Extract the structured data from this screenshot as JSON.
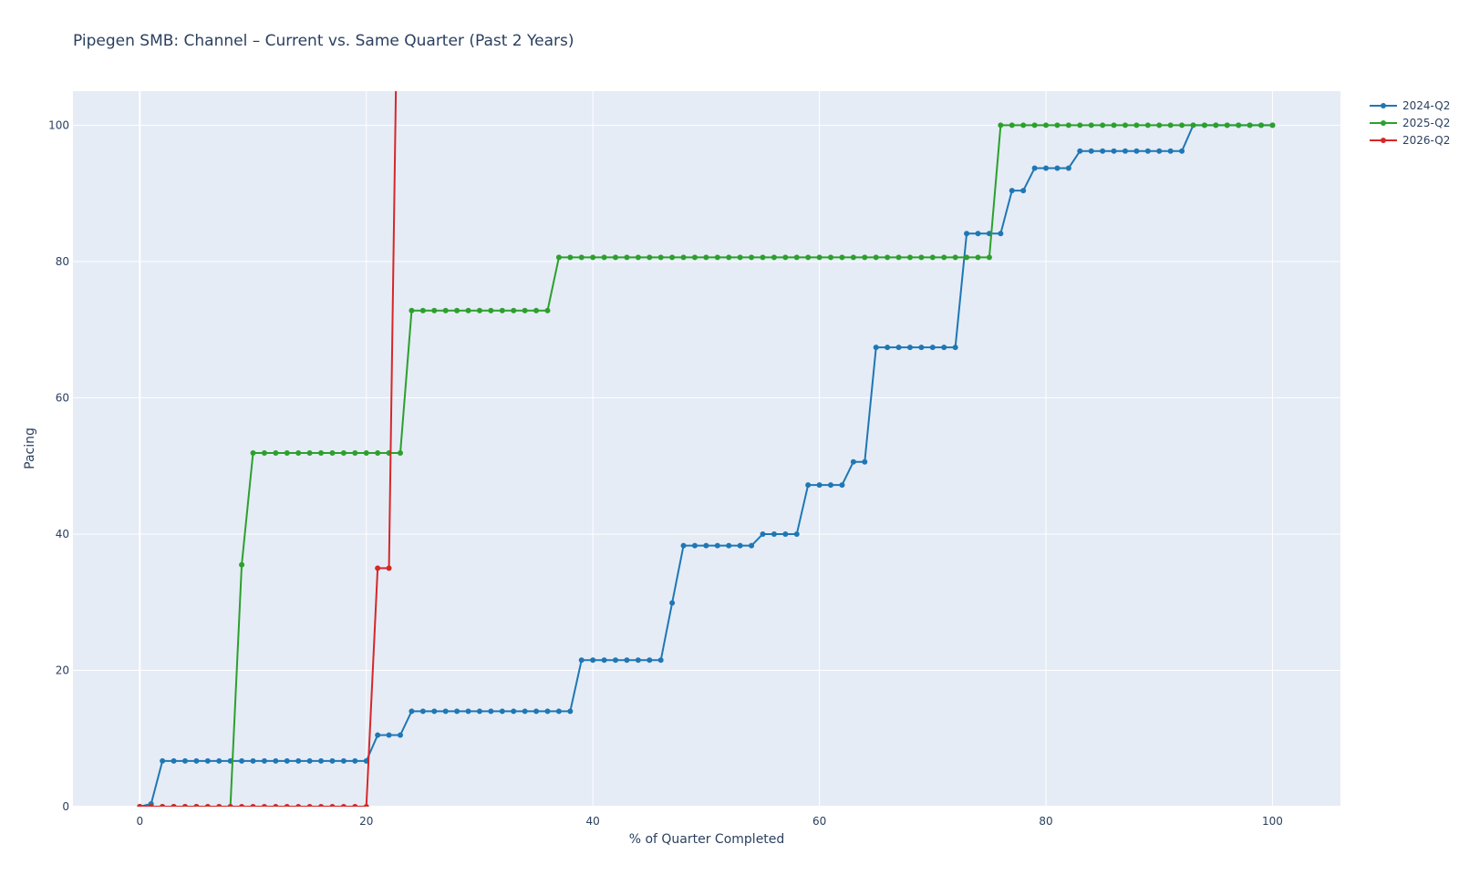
{
  "chart_data": {
    "type": "line",
    "title": "Pipegen SMB: Channel – Current vs. Same Quarter (Past 2 Years)",
    "xlabel": "% of Quarter Completed",
    "ylabel": "Pacing",
    "xlim": [
      -5.9,
      106
    ],
    "ylim": [
      0,
      105
    ],
    "x_ticks": [
      0,
      20,
      40,
      60,
      80,
      100
    ],
    "y_ticks": [
      0,
      20,
      40,
      60,
      80,
      100
    ],
    "grid": true,
    "legend_position": "top-right",
    "plot_background": "#e5ecf6",
    "series": [
      {
        "name": "2024-Q2",
        "color": "#1f77b4",
        "x": [
          0,
          1,
          2,
          3,
          4,
          5,
          6,
          7,
          8,
          9,
          10,
          11,
          12,
          13,
          14,
          15,
          16,
          17,
          18,
          19,
          20,
          21,
          22,
          23,
          24,
          25,
          26,
          27,
          28,
          29,
          30,
          31,
          32,
          33,
          34,
          35,
          36,
          37,
          38,
          39,
          40,
          41,
          42,
          43,
          44,
          45,
          46,
          47,
          48,
          49,
          50,
          51,
          52,
          53,
          54,
          55,
          56,
          57,
          58,
          59,
          60,
          61,
          62,
          63,
          64,
          65,
          66,
          67,
          68,
          69,
          70,
          71,
          72,
          73,
          74,
          75,
          76,
          77,
          78,
          79,
          80,
          81,
          82,
          83,
          84,
          85,
          86,
          87,
          88,
          89,
          90,
          91,
          92,
          93,
          94,
          95,
          96,
          97,
          98,
          99,
          100
        ],
        "y": [
          0,
          0.4,
          6.7,
          6.7,
          6.7,
          6.7,
          6.7,
          6.7,
          6.7,
          6.7,
          6.7,
          6.7,
          6.7,
          6.7,
          6.7,
          6.7,
          6.7,
          6.7,
          6.7,
          6.7,
          6.7,
          10.5,
          10.5,
          10.5,
          14.0,
          14.0,
          14.0,
          14.0,
          14.0,
          14.0,
          14.0,
          14.0,
          14.0,
          14.0,
          14.0,
          14.0,
          14.0,
          14.0,
          14.0,
          21.5,
          21.5,
          21.5,
          21.5,
          21.5,
          21.5,
          21.5,
          21.5,
          29.9,
          38.3,
          38.3,
          38.3,
          38.3,
          38.3,
          38.3,
          38.3,
          40.0,
          40.0,
          40.0,
          40.0,
          47.2,
          47.2,
          47.2,
          47.2,
          50.6,
          50.6,
          67.4,
          67.4,
          67.4,
          67.4,
          67.4,
          67.4,
          67.4,
          67.4,
          84.1,
          84.1,
          84.1,
          84.1,
          90.4,
          90.4,
          93.7,
          93.7,
          93.7,
          93.7,
          96.2,
          96.2,
          96.2,
          96.2,
          96.2,
          96.2,
          96.2,
          96.2,
          96.2,
          96.2,
          100,
          100,
          100,
          100,
          100,
          100,
          100,
          100
        ]
      },
      {
        "name": "2025-Q2",
        "color": "#2ca02c",
        "x": [
          0,
          1,
          2,
          3,
          4,
          5,
          6,
          7,
          8,
          9,
          10,
          11,
          12,
          13,
          14,
          15,
          16,
          17,
          18,
          19,
          20,
          21,
          22,
          23,
          24,
          25,
          26,
          27,
          28,
          29,
          30,
          31,
          32,
          33,
          34,
          35,
          36,
          37,
          38,
          39,
          40,
          41,
          42,
          43,
          44,
          45,
          46,
          47,
          48,
          49,
          50,
          51,
          52,
          53,
          54,
          55,
          56,
          57,
          58,
          59,
          60,
          61,
          62,
          63,
          64,
          65,
          66,
          67,
          68,
          69,
          70,
          71,
          72,
          73,
          74,
          75,
          76,
          77,
          78,
          79,
          80,
          81,
          82,
          83,
          84,
          85,
          86,
          87,
          88,
          89,
          90,
          91,
          92,
          93,
          94,
          95,
          96,
          97,
          98,
          99,
          100
        ],
        "y": [
          0,
          0,
          0,
          0,
          0,
          0,
          0,
          0,
          0,
          35.5,
          51.9,
          51.9,
          51.9,
          51.9,
          51.9,
          51.9,
          51.9,
          51.9,
          51.9,
          51.9,
          51.9,
          51.9,
          51.9,
          51.9,
          72.8,
          72.8,
          72.8,
          72.8,
          72.8,
          72.8,
          72.8,
          72.8,
          72.8,
          72.8,
          72.8,
          72.8,
          72.8,
          80.6,
          80.6,
          80.6,
          80.6,
          80.6,
          80.6,
          80.6,
          80.6,
          80.6,
          80.6,
          80.6,
          80.6,
          80.6,
          80.6,
          80.6,
          80.6,
          80.6,
          80.6,
          80.6,
          80.6,
          80.6,
          80.6,
          80.6,
          80.6,
          80.6,
          80.6,
          80.6,
          80.6,
          80.6,
          80.6,
          80.6,
          80.6,
          80.6,
          80.6,
          80.6,
          80.6,
          80.6,
          80.6,
          80.6,
          100,
          100,
          100,
          100,
          100,
          100,
          100,
          100,
          100,
          100,
          100,
          100,
          100,
          100,
          100,
          100,
          100,
          100,
          100,
          100,
          100,
          100,
          100,
          100,
          100
        ]
      },
      {
        "name": "2026-Q2",
        "color": "#d62728",
        "x": [
          0,
          1,
          2,
          3,
          4,
          5,
          6,
          7,
          8,
          9,
          10,
          11,
          12,
          13,
          14,
          15,
          16,
          17,
          18,
          19,
          20,
          21,
          22,
          23
        ],
        "y": [
          0,
          0,
          0,
          0,
          0,
          0,
          0,
          0,
          0,
          0,
          0,
          0,
          0,
          0,
          0,
          0,
          0,
          0,
          0,
          0,
          0,
          35.0,
          35.0,
          150
        ]
      }
    ]
  }
}
